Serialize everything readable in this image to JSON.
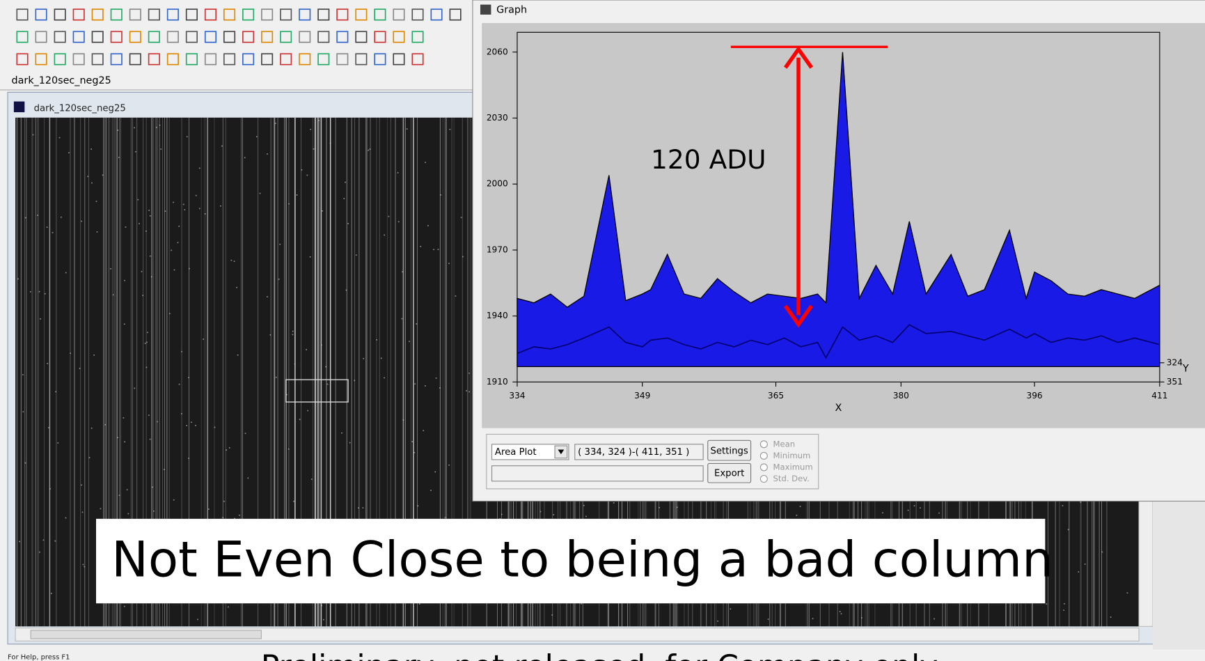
{
  "toolbar": {
    "tab": "dark_120sec_neg25"
  },
  "image_window": {
    "title": "dark_120sec_neg25"
  },
  "graph_window": {
    "title": "Graph",
    "controls": {
      "plot_type": "Area Plot",
      "region": "( 334, 324 )-( 411, 351 )",
      "settings": "Settings",
      "export": "Export",
      "options": [
        "Mean",
        "Minimum",
        "Maximum",
        "Std. Dev."
      ]
    }
  },
  "chart_data": {
    "type": "area",
    "annotation": "120 ADU",
    "xlabel": "X",
    "ylabel": "Y",
    "x": [
      334,
      336,
      338,
      340,
      342,
      345,
      347,
      349,
      350,
      352,
      354,
      356,
      358,
      360,
      362,
      364,
      366,
      368,
      370,
      371,
      373,
      375,
      377,
      379,
      381,
      383,
      386,
      388,
      390,
      393,
      395,
      396,
      398,
      400,
      402,
      404,
      406,
      408,
      411
    ],
    "series": [
      {
        "color": "#1a1ae6",
        "values": [
          1948,
          1946,
          1950,
          1944,
          1949,
          2004,
          1947,
          1950,
          1952,
          1968,
          1950,
          1948,
          1957,
          1951,
          1946,
          1950,
          1949,
          1948,
          1950,
          1946,
          2060,
          1948,
          1963,
          1950,
          1983,
          1950,
          1968,
          1949,
          1952,
          1979,
          1948,
          1960,
          1956,
          1950,
          1949,
          1952,
          1950,
          1948,
          1954
        ]
      },
      {
        "color": "#00006e",
        "values": [
          1923,
          1926,
          1925,
          1927,
          1930,
          1935,
          1928,
          1926,
          1929,
          1930,
          1927,
          1925,
          1928,
          1926,
          1929,
          1927,
          1930,
          1926,
          1928,
          1921,
          1935,
          1929,
          1931,
          1928,
          1936,
          1932,
          1933,
          1931,
          1929,
          1934,
          1930,
          1932,
          1928,
          1930,
          1929,
          1931,
          1928,
          1930,
          1927
        ]
      }
    ],
    "xlim": [
      334,
      411
    ],
    "ylim": [
      1910,
      2069
    ],
    "xticks": [
      334,
      349,
      365,
      380,
      396,
      411
    ],
    "yticks": [
      1910,
      1940,
      1970,
      2000,
      2030,
      2060
    ],
    "depth_ticks": [
      324,
      351
    ]
  },
  "caption": "Not Even Close to being a bad column",
  "footer": "Preliminary, not released, for Company only",
  "status": "For Help, press F1"
}
